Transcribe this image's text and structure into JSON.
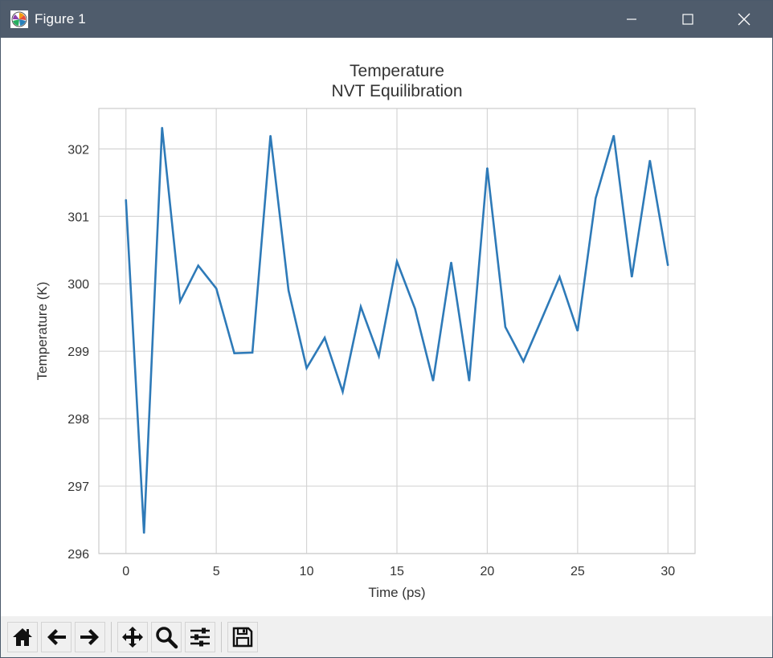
{
  "window": {
    "title": "Figure 1"
  },
  "toolbar": {
    "buttons": [
      "home-icon",
      "back-arrow-icon",
      "forward-arrow-icon",
      "pan-icon",
      "zoom-icon",
      "configure-subplots-icon",
      "save-icon"
    ]
  },
  "colors": {
    "titlebar": "#4f5c6c",
    "line": "#2e7ab8",
    "grid": "#d5d5d5",
    "axes_frame": "#cccccc",
    "text": "#333333"
  },
  "chart_data": {
    "type": "line",
    "title": "Temperature\nNVT Equilibration",
    "title_lines": [
      "Temperature",
      "NVT Equilibration"
    ],
    "xlabel": "Time (ps)",
    "ylabel": "Temperature (K)",
    "xlim": [
      -1.5,
      31.5
    ],
    "ylim": [
      296.0,
      302.6
    ],
    "xticks": [
      0,
      5,
      10,
      15,
      20,
      25,
      30
    ],
    "yticks": [
      296,
      297,
      298,
      299,
      300,
      301,
      302
    ],
    "grid": true,
    "series": [
      {
        "x": [
          0,
          1,
          2,
          3,
          4,
          5,
          6,
          7,
          8,
          9,
          10,
          11,
          12,
          13,
          14,
          15,
          16,
          17,
          18,
          19,
          20,
          21,
          22,
          23,
          24,
          25,
          26,
          27,
          28,
          29,
          30
        ],
        "values": [
          301.25,
          296.3,
          302.32,
          299.74,
          300.27,
          299.93,
          298.97,
          298.98,
          302.2,
          299.9,
          298.75,
          299.2,
          298.4,
          299.66,
          298.93,
          300.33,
          299.63,
          298.56,
          300.32,
          298.56,
          301.72,
          299.36,
          298.85,
          299.47,
          300.1,
          299.3,
          301.27,
          302.2,
          300.1,
          301.83,
          300.27
        ]
      }
    ]
  }
}
